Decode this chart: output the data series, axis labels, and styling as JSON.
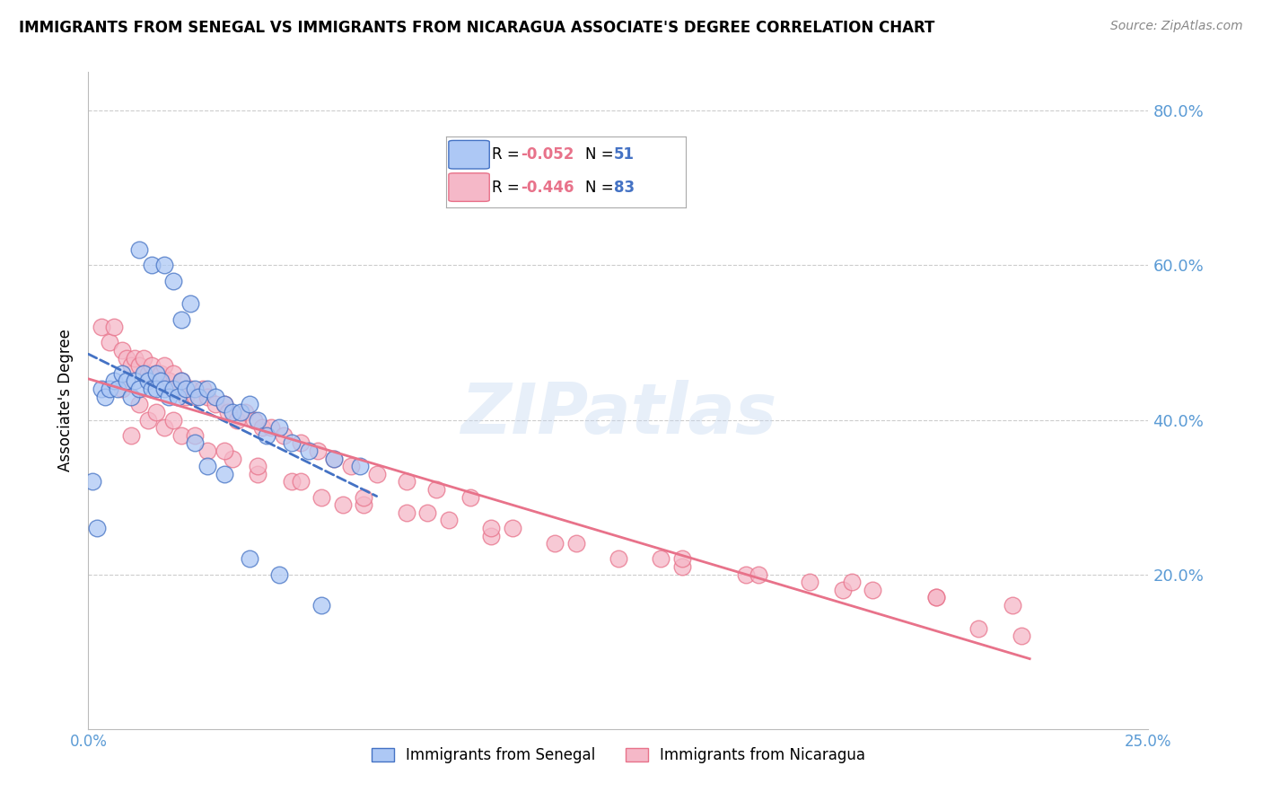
{
  "title": "IMMIGRANTS FROM SENEGAL VS IMMIGRANTS FROM NICARAGUA ASSOCIATE'S DEGREE CORRELATION CHART",
  "source": "Source: ZipAtlas.com",
  "ylabel": "Associate's Degree",
  "right_yticks": [
    "80.0%",
    "60.0%",
    "40.0%",
    "20.0%"
  ],
  "right_ytick_vals": [
    0.8,
    0.6,
    0.4,
    0.2
  ],
  "xlim": [
    0.0,
    0.25
  ],
  "ylim": [
    0.0,
    0.85
  ],
  "legend_r1": "R = -0.052",
  "legend_n1": "N = 51",
  "legend_r2": "R = -0.446",
  "legend_n2": "N = 83",
  "senegal_color": "#adc8f5",
  "nicaragua_color": "#f5b8c8",
  "senegal_edge_color": "#4472c4",
  "nicaragua_edge_color": "#e8728a",
  "senegal_line_color": "#4472c4",
  "nicaragua_line_color": "#e8728a",
  "tick_color": "#5b9bd5",
  "grid_color": "#cccccc",
  "watermark": "ZIPatlas",
  "senegal_x": [
    0.001,
    0.002,
    0.003,
    0.004,
    0.005,
    0.006,
    0.007,
    0.008,
    0.009,
    0.01,
    0.011,
    0.012,
    0.013,
    0.014,
    0.015,
    0.016,
    0.016,
    0.017,
    0.018,
    0.019,
    0.02,
    0.021,
    0.022,
    0.023,
    0.024,
    0.025,
    0.026,
    0.028,
    0.03,
    0.032,
    0.034,
    0.036,
    0.038,
    0.04,
    0.042,
    0.045,
    0.048,
    0.052,
    0.058,
    0.064,
    0.012,
    0.015,
    0.018,
    0.02,
    0.022,
    0.025,
    0.028,
    0.032,
    0.038,
    0.045,
    0.055
  ],
  "senegal_y": [
    0.32,
    0.26,
    0.44,
    0.43,
    0.44,
    0.45,
    0.44,
    0.46,
    0.45,
    0.43,
    0.45,
    0.44,
    0.46,
    0.45,
    0.44,
    0.46,
    0.44,
    0.45,
    0.44,
    0.43,
    0.44,
    0.43,
    0.45,
    0.44,
    0.55,
    0.44,
    0.43,
    0.44,
    0.43,
    0.42,
    0.41,
    0.41,
    0.42,
    0.4,
    0.38,
    0.39,
    0.37,
    0.36,
    0.35,
    0.34,
    0.62,
    0.6,
    0.6,
    0.58,
    0.53,
    0.37,
    0.34,
    0.33,
    0.22,
    0.2,
    0.16
  ],
  "nicaragua_x": [
    0.003,
    0.005,
    0.006,
    0.008,
    0.009,
    0.01,
    0.011,
    0.012,
    0.013,
    0.014,
    0.015,
    0.016,
    0.017,
    0.018,
    0.019,
    0.02,
    0.021,
    0.022,
    0.023,
    0.024,
    0.025,
    0.027,
    0.028,
    0.03,
    0.032,
    0.033,
    0.035,
    0.037,
    0.039,
    0.041,
    0.043,
    0.046,
    0.05,
    0.054,
    0.058,
    0.062,
    0.068,
    0.075,
    0.082,
    0.09,
    0.01,
    0.014,
    0.018,
    0.022,
    0.028,
    0.034,
    0.04,
    0.048,
    0.055,
    0.065,
    0.075,
    0.085,
    0.095,
    0.11,
    0.125,
    0.14,
    0.155,
    0.17,
    0.185,
    0.2,
    0.008,
    0.012,
    0.016,
    0.02,
    0.025,
    0.032,
    0.04,
    0.05,
    0.065,
    0.08,
    0.095,
    0.115,
    0.135,
    0.158,
    0.178,
    0.2,
    0.218,
    0.06,
    0.1,
    0.14,
    0.18,
    0.21,
    0.22
  ],
  "nicaragua_y": [
    0.52,
    0.5,
    0.52,
    0.49,
    0.48,
    0.47,
    0.48,
    0.47,
    0.48,
    0.46,
    0.47,
    0.46,
    0.46,
    0.47,
    0.45,
    0.46,
    0.44,
    0.45,
    0.43,
    0.44,
    0.43,
    0.44,
    0.43,
    0.42,
    0.42,
    0.41,
    0.4,
    0.41,
    0.4,
    0.39,
    0.39,
    0.38,
    0.37,
    0.36,
    0.35,
    0.34,
    0.33,
    0.32,
    0.31,
    0.3,
    0.38,
    0.4,
    0.39,
    0.38,
    0.36,
    0.35,
    0.33,
    0.32,
    0.3,
    0.29,
    0.28,
    0.27,
    0.25,
    0.24,
    0.22,
    0.21,
    0.2,
    0.19,
    0.18,
    0.17,
    0.44,
    0.42,
    0.41,
    0.4,
    0.38,
    0.36,
    0.34,
    0.32,
    0.3,
    0.28,
    0.26,
    0.24,
    0.22,
    0.2,
    0.18,
    0.17,
    0.16,
    0.29,
    0.26,
    0.22,
    0.19,
    0.13,
    0.12
  ]
}
